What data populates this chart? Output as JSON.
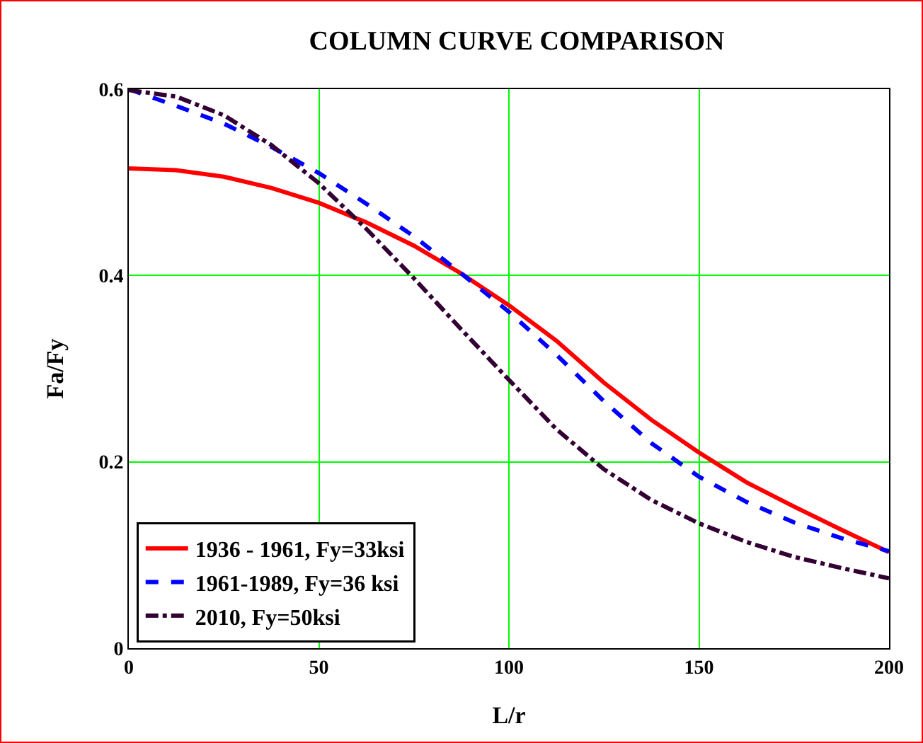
{
  "chart_data": {
    "type": "line",
    "title": "COLUMN CURVE COMPARISON",
    "xlabel": "L/r",
    "ylabel": "Fa/Fy",
    "x": [
      0,
      12.5,
      25,
      37.5,
      50,
      62.5,
      75,
      87.5,
      100,
      112.5,
      125,
      137.5,
      150,
      162.5,
      175,
      187.5,
      200
    ],
    "series": [
      {
        "name": "1936 - 1961, Fy=33ksi",
        "color": "#ff0000",
        "line_style": "solid",
        "values": [
          0.515,
          0.513,
          0.506,
          0.494,
          0.478,
          0.457,
          0.432,
          0.402,
          0.368,
          0.33,
          0.285,
          0.245,
          0.21,
          0.178,
          0.152,
          0.127,
          0.103
        ]
      },
      {
        "name": "1961-1989, Fy=36 ksi",
        "color": "#0000ff",
        "line_style": "dashed",
        "values": [
          0.6,
          0.582,
          0.563,
          0.538,
          0.51,
          0.477,
          0.442,
          0.402,
          0.361,
          0.315,
          0.265,
          0.22,
          0.184,
          0.157,
          0.135,
          0.118,
          0.104
        ]
      },
      {
        "name": "2010, Fy=50ksi",
        "color": "#330033",
        "line_style": "dashdot",
        "values": [
          0.599,
          0.592,
          0.572,
          0.54,
          0.499,
          0.45,
          0.397,
          0.342,
          0.288,
          0.235,
          0.192,
          0.159,
          0.134,
          0.114,
          0.098,
          0.086,
          0.075
        ]
      }
    ],
    "xlim": [
      0,
      200
    ],
    "xticks": [
      0,
      50,
      100,
      150,
      200
    ],
    "ylim": [
      0,
      0.6
    ],
    "yticks": [
      0,
      0.2,
      0.4,
      0.6
    ],
    "grid": true,
    "legend": "bottom left",
    "marker": "none"
  }
}
